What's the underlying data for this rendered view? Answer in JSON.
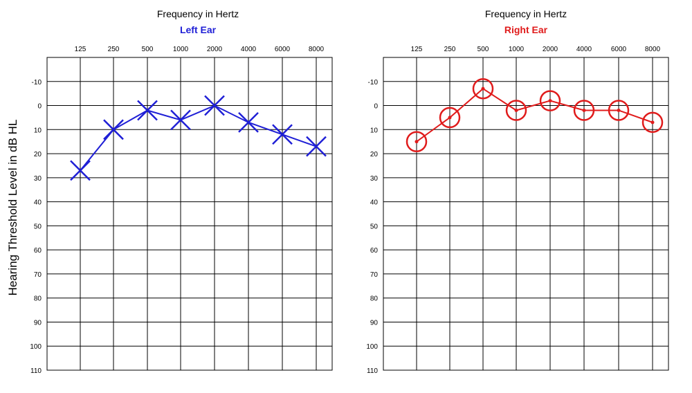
{
  "y_axis_label": "Hearing Threshold Level in dB HL",
  "chart_data": [
    {
      "type": "line",
      "title": "Frequency in Hertz",
      "subtitle": "Left Ear",
      "ylabel": "Hearing Threshold Level in dB HL",
      "categories": [
        "125",
        "250",
        "500",
        "1000",
        "2000",
        "4000",
        "6000",
        "8000"
      ],
      "y_ticks": [
        -10,
        0,
        10,
        20,
        30,
        40,
        50,
        60,
        70,
        80,
        90,
        100,
        110
      ],
      "ylim": [
        -20,
        110
      ],
      "y_inverted": true,
      "grid": true,
      "marker": "x",
      "color": "#1f1fd6",
      "series": [
        {
          "values": [
            27,
            10,
            2,
            6,
            0,
            7,
            12,
            17
          ]
        }
      ]
    },
    {
      "type": "line",
      "title": "Frequency in Hertz",
      "subtitle": "Right Ear",
      "categories": [
        "125",
        "250",
        "500",
        "1000",
        "2000",
        "4000",
        "6000",
        "8000"
      ],
      "y_ticks": [
        -10,
        0,
        10,
        20,
        30,
        40,
        50,
        60,
        70,
        80,
        90,
        100,
        110
      ],
      "ylim": [
        -20,
        110
      ],
      "y_inverted": true,
      "grid": true,
      "marker": "o",
      "color": "#e01b1b",
      "series": [
        {
          "values": [
            15,
            5,
            -7,
            2,
            -2,
            2,
            2,
            7
          ]
        }
      ]
    }
  ]
}
